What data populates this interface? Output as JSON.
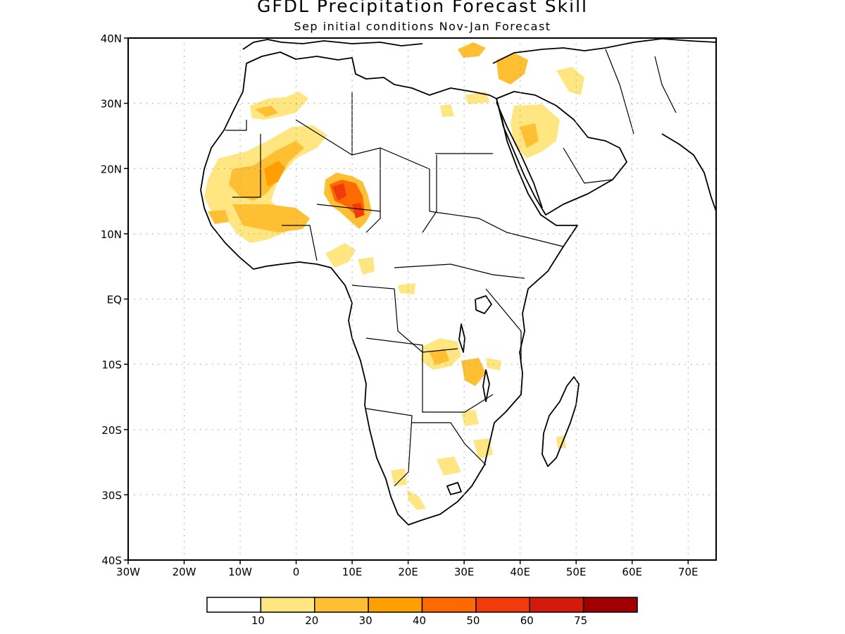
{
  "title": "GFDL Precipitation Forecast Skill",
  "subtitle": "Sep initial conditions  Nov-Jan Forecast",
  "map": {
    "lon_range": [
      -30,
      75
    ],
    "lat_range": [
      -40,
      40
    ],
    "lat_labels": [
      "40N",
      "30N",
      "20N",
      "10N",
      "EQ",
      "10S",
      "20S",
      "30S",
      "40S"
    ],
    "lon_labels": [
      "30W",
      "20W",
      "10W",
      "0",
      "10E",
      "20E",
      "30E",
      "40E",
      "50E",
      "60E",
      "70E"
    ],
    "grid": true
  },
  "legend": {
    "boundaries": [
      "10",
      "20",
      "30",
      "40",
      "50",
      "60",
      "75"
    ],
    "colors": [
      "#ffffff",
      "#ffe680",
      "#ffbf33",
      "#ff9f00",
      "#ff6a00",
      "#f23a0c",
      "#d41a0a",
      "#a00000"
    ]
  },
  "colors": {
    "frame": "#000000",
    "grid": "#999999"
  }
}
